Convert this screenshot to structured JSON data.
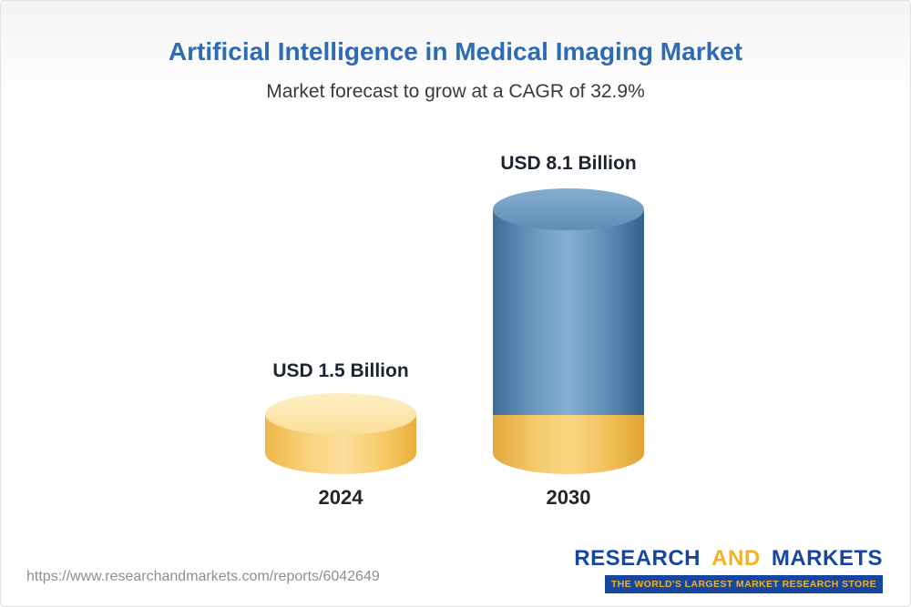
{
  "page": {
    "title": "Artificial Intelligence in Medical Imaging Market",
    "subtitle": "Market forecast to grow at a CAGR of 32.9%"
  },
  "chart_data": {
    "type": "bar",
    "title": "Artificial Intelligence in Medical Imaging Market",
    "subtitle": "Market forecast to grow at a CAGR of 32.9%",
    "cagr_percent": 32.9,
    "unit": "USD Billion",
    "categories": [
      "2024",
      "2030"
    ],
    "values": [
      1.5,
      8.1
    ],
    "value_labels": [
      "USD 1.5 Billion",
      "USD 8.1 Billion"
    ],
    "bar_colors": [
      "#f6c75e",
      "#4e80ad"
    ],
    "bar_style": "3d-cylinder",
    "grid": false,
    "legend": "none"
  },
  "footer": {
    "url": "https://www.researchandmarkets.com/reports/6042649",
    "logo": {
      "research": "RESEARCH",
      "and": "AND",
      "markets": "MARKETS",
      "tagline": "THE WORLD'S LARGEST MARKET RESEARCH STORE",
      "blue": "#17469e",
      "gold": "#f2b226"
    }
  }
}
